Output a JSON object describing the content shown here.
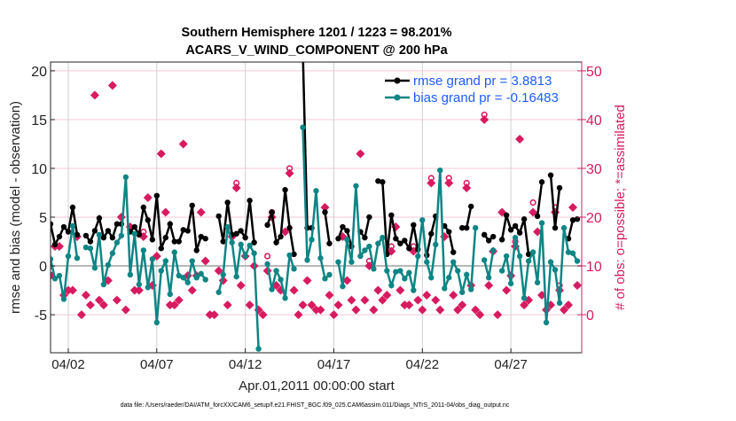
{
  "chart_data": {
    "type": "line",
    "title": [
      "Southern Hemisphere 1201 / 1223 = 98.201%",
      "ACARS_V_WIND_COMPONENT @ 200 hPa"
    ],
    "xlabel": "Apr.01,2011 00:00:00 start",
    "ylabel": "rmse and bias (model - observation)",
    "ylabel_right": "# of obs: o=possible; *=assimilated",
    "footnote": "data file: /Users/raeder/DAI/ATM_forcXX/CAM6_setup/f.e21.FHIST_BGC.f09_025.CAM6assim.011/Diags_NTrS_2011-04/obs_diag_output.nc",
    "xlim": [
      1,
      31
    ],
    "ylim": [
      -8.9,
      20.9
    ],
    "ylim_right": [
      -7.8,
      51.8
    ],
    "x_start": 1.0,
    "x_step": 0.25,
    "x_ticks": [
      {
        "value": 2,
        "label": "04/02"
      },
      {
        "value": 7,
        "label": "04/07"
      },
      {
        "value": 12,
        "label": "04/12"
      },
      {
        "value": 17,
        "label": "04/17"
      },
      {
        "value": 22,
        "label": "04/22"
      },
      {
        "value": 27,
        "label": "04/27"
      }
    ],
    "y_ticks": [
      {
        "value": -5,
        "label": "-5"
      },
      {
        "value": 0,
        "label": "0"
      },
      {
        "value": 5,
        "label": "5"
      },
      {
        "value": 10,
        "label": "10"
      },
      {
        "value": 15,
        "label": "15"
      },
      {
        "value": 20,
        "label": "20"
      }
    ],
    "y_ticks_right": [
      {
        "value": 0,
        "label": "0"
      },
      {
        "value": 10,
        "label": "10"
      },
      {
        "value": 20,
        "label": "20"
      },
      {
        "value": 30,
        "label": "30"
      },
      {
        "value": 40,
        "label": "40"
      },
      {
        "value": 50,
        "label": "50"
      }
    ],
    "grid": true,
    "legend_position": "top-right",
    "colors": {
      "rmse": "#000000",
      "bias": "#0f8585",
      "obs": "#d81b60",
      "legend_text": "#1f5cff",
      "grid_h": "#f3c9d8",
      "grid_v": "#d0d0d0",
      "zero": "#b8b8b8"
    },
    "series": [
      {
        "name": "rmse grand pr = 3.8813",
        "key": "rmse",
        "values": [
          4.3,
          2.2,
          3.0,
          4.0,
          3.5,
          6.0,
          3.2,
          null,
          3.1,
          2.5,
          3.6,
          4.9,
          2.9,
          3.6,
          2.9,
          4.3,
          4.3,
          null,
          3.5,
          4.0,
          3.2,
          6.0,
          4.7,
          2.7,
          7.2,
          1.8,
          2.9,
          4.3,
          2.5,
          2.5,
          3.7,
          3.6,
          6.2,
          1.6,
          3.0,
          2.8,
          null,
          null,
          5.1,
          2.5,
          6.5,
          3.2,
          3.3,
          3.6,
          2.9,
          6.7,
          2.4,
          null,
          null,
          4.2,
          5.5,
          2.4,
          3.0,
          7.8,
          3.9,
          1.2,
          null,
          22.0,
          3.9,
          3.9,
          null,
          null,
          5.5,
          2.3,
          null,
          2.8,
          4.0,
          3.6,
          2.0,
          null,
          3.5,
          2.9,
          5.0,
          null,
          8.7,
          8.6,
          1.2,
          5.2,
          2.8,
          2.3,
          2.6,
          1.8,
          4.2,
          1.7,
          null,
          1.1,
          3.3,
          5.1,
          null,
          4.1,
          3.5,
          1.4,
          null,
          3.9,
          3.9,
          6.1,
          null,
          null,
          3.2,
          2.6,
          3.0,
          null,
          2.7,
          5.2,
          3.7,
          4.1,
          3.4,
          4.8,
          1.2,
          null,
          5.1,
          8.6,
          null,
          9.3,
          3.9,
          8.0,
          null,
          2.8,
          4.7,
          4.8
        ]
      },
      {
        "name": "bias grand pr = -0.16483",
        "key": "bias",
        "values": [
          0.7,
          -1.3,
          -1.0,
          -3.4,
          1.0,
          4.1,
          0.8,
          null,
          1.9,
          1.8,
          -0.2,
          3.2,
          -1.9,
          0.1,
          1.3,
          2.4,
          3.1,
          9.1,
          -0.9,
          3.3,
          -1.9,
          1.6,
          -2.2,
          0.7,
          -5.8,
          -0.5,
          0.5,
          -2.9,
          1.4,
          -1.0,
          -1.2,
          -1.7,
          0.5,
          -1.2,
          -0.8,
          -1.4,
          null,
          null,
          -2.7,
          -0.9,
          4.0,
          2.4,
          -1.1,
          2.2,
          1.0,
          2.1,
          1.3,
          -8.5,
          null,
          0.2,
          -2.4,
          -0.5,
          -1.4,
          -3.3,
          1.1,
          -0.3,
          null,
          14.2,
          0.6,
          2.7,
          7.7,
          0.8,
          -1.3,
          -0.9,
          null,
          0.4,
          -2.1,
          2.7,
          0.4,
          8.2,
          1.0,
          1.6,
          2.0,
          -0.3,
          2.3,
          2.9,
          -0.5,
          -2.0,
          -0.6,
          -0.5,
          -1.3,
          -0.7,
          -2.5,
          1.0,
          4.7,
          0.4,
          -1.2,
          2.2,
          9.8,
          -2.3,
          -1.2,
          0.4,
          -0.5,
          -2.7,
          -0.9,
          -2.4,
          3.9,
          null,
          0.6,
          -1.2,
          1.6,
          null,
          -0.5,
          1.0,
          -1.8,
          2.9,
          1.0,
          -3.3,
          0.5,
          1.4,
          -1.7,
          4.4,
          -5.8,
          0.4,
          -0.4,
          -3.8,
          3.9,
          1.4,
          1.3,
          0.5
        ]
      },
      {
        "name": "assimilated",
        "key": "assimilated",
        "axis": "right",
        "values": [
          8,
          14,
          14,
          4,
          5,
          5,
          16,
          0,
          4,
          2,
          45,
          3,
          2,
          7,
          47,
          3,
          20,
          1,
          18,
          5,
          5,
          16,
          24,
          6,
          12,
          33,
          21,
          2,
          2,
          3,
          35,
          8,
          5,
          8,
          21,
          11,
          0,
          0,
          9,
          7,
          2,
          16,
          26,
          6,
          12,
          2,
          10,
          1,
          0,
          9,
          20,
          6,
          5,
          17,
          29,
          5,
          0,
          2,
          7,
          2,
          1,
          1,
          22,
          4,
          0,
          2,
          16,
          7,
          3,
          1,
          33,
          3,
          10,
          1,
          5,
          3,
          4,
          13,
          18,
          5,
          2,
          2,
          13,
          3,
          1,
          4,
          27,
          3,
          1,
          16,
          27,
          4,
          1,
          2,
          26,
          6,
          1,
          0,
          40,
          6,
          13,
          0,
          21,
          5,
          8,
          14,
          36,
          2,
          3,
          21,
          17,
          4,
          1,
          2,
          21,
          5,
          1,
          2,
          22,
          6
        ]
      },
      {
        "name": "possible",
        "key": "possible",
        "axis": "right",
        "values": [
          9,
          14,
          14,
          4,
          5,
          5,
          16,
          0,
          4,
          2,
          45,
          3,
          2,
          7,
          47,
          3,
          20,
          1,
          18,
          5,
          5,
          17,
          24,
          6,
          12,
          33,
          21,
          2,
          2,
          3,
          35,
          8,
          5,
          8,
          21,
          11,
          0,
          0,
          9,
          7,
          2,
          16,
          27,
          6,
          12,
          2,
          10,
          1,
          0,
          12,
          21,
          6,
          5,
          17,
          30,
          5,
          0,
          2,
          7,
          2,
          1,
          1,
          22,
          4,
          0,
          2,
          16,
          7,
          3,
          1,
          33,
          3,
          11,
          1,
          5,
          3,
          4,
          14,
          18,
          5,
          2,
          2,
          14,
          3,
          1,
          4,
          28,
          3,
          1,
          16,
          28,
          4,
          1,
          2,
          27,
          6,
          1,
          0,
          41,
          6,
          13,
          0,
          21,
          5,
          8,
          15,
          36,
          2,
          3,
          23,
          17,
          4,
          1,
          2,
          22,
          6,
          1,
          2,
          22,
          6
        ]
      }
    ]
  }
}
